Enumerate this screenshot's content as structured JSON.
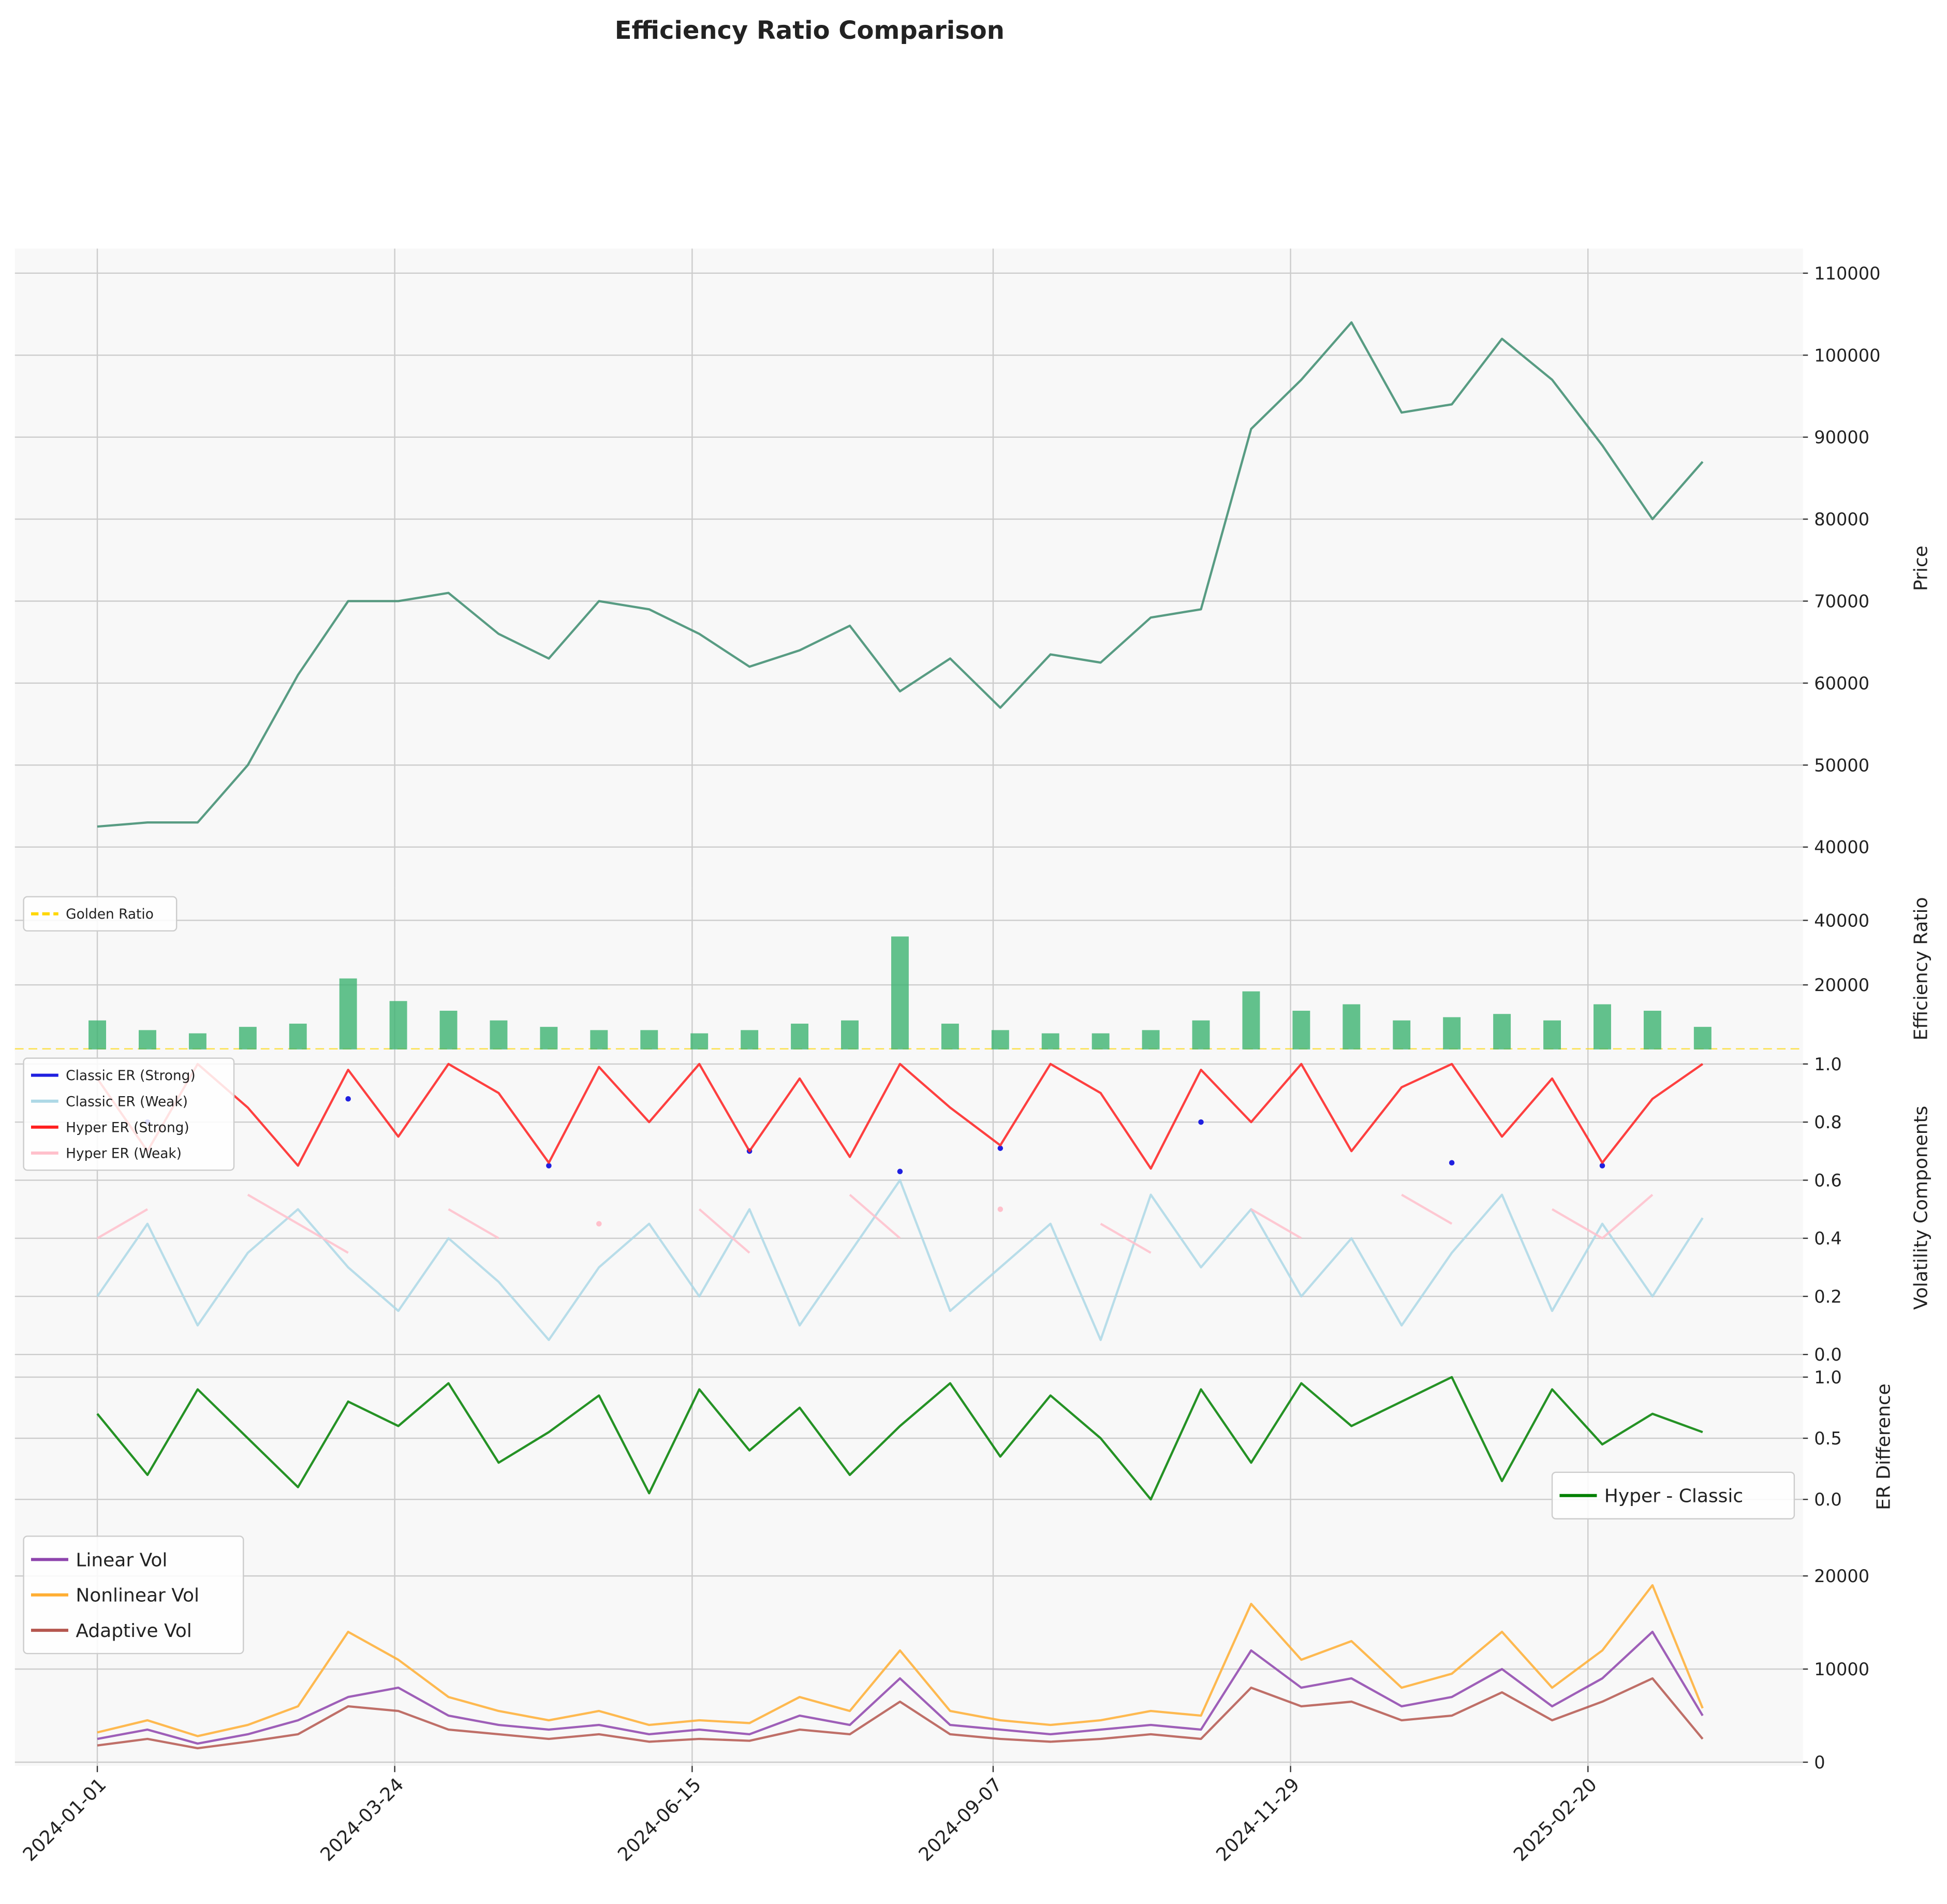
{
  "title": "Efficiency Ratio Comparison",
  "chart_data": [
    {
      "type": "line",
      "ylabel": "Price",
      "x": [
        "2024-01-01",
        "2024-01-15",
        "2024-01-29",
        "2024-02-12",
        "2024-02-26",
        "2024-03-11",
        "2024-03-25",
        "2024-04-08",
        "2024-04-22",
        "2024-05-06",
        "2024-05-20",
        "2024-06-03",
        "2024-06-17",
        "2024-07-01",
        "2024-07-15",
        "2024-07-29",
        "2024-08-12",
        "2024-08-26",
        "2024-09-09",
        "2024-09-23",
        "2024-10-07",
        "2024-10-21",
        "2024-11-04",
        "2024-11-18",
        "2024-12-02",
        "2024-12-16",
        "2024-12-30",
        "2025-01-13",
        "2025-01-27",
        "2025-02-10",
        "2025-02-24",
        "2025-03-10",
        "2025-03-24"
      ],
      "series": [
        {
          "color": "#3c8c6e",
          "values": [
            42500,
            43000,
            43000,
            50000,
            61000,
            70000,
            70000,
            71000,
            66000,
            63000,
            70000,
            69000,
            66000,
            62000,
            64000,
            67000,
            59000,
            63000,
            57000,
            63500,
            62500,
            68000,
            69000,
            91000,
            97000,
            104000,
            93000,
            94000,
            102000,
            97000,
            89000,
            80000,
            87000
          ]
        }
      ],
      "xlim": [
        "2023-12-09",
        "2025-04-21"
      ],
      "ylim": [
        35000,
        113000
      ],
      "yticks": [
        40000,
        50000,
        60000,
        70000,
        80000,
        90000,
        100000,
        110000
      ],
      "grid": true
    },
    {
      "type": "bar",
      "ylabel": "Efficiency Ratio",
      "x": [
        "2024-01-01",
        "2024-01-15",
        "2024-01-29",
        "2024-02-12",
        "2024-02-26",
        "2024-03-11",
        "2024-03-25",
        "2024-04-08",
        "2024-04-22",
        "2024-05-06",
        "2024-05-20",
        "2024-06-03",
        "2024-06-17",
        "2024-07-01",
        "2024-07-15",
        "2024-07-29",
        "2024-08-12",
        "2024-08-26",
        "2024-09-09",
        "2024-09-23",
        "2024-10-07",
        "2024-10-21",
        "2024-11-04",
        "2024-11-18",
        "2024-12-02",
        "2024-12-16",
        "2024-12-30",
        "2025-01-13",
        "2025-01-27",
        "2025-02-10",
        "2025-02-24",
        "2025-03-10",
        "2025-03-24"
      ],
      "series": [
        {
          "color": "#3cb371",
          "values": [
            9000,
            6000,
            5000,
            7000,
            8000,
            22000,
            15000,
            12000,
            9000,
            7000,
            6000,
            6000,
            5000,
            6000,
            8000,
            9000,
            35000,
            8000,
            6000,
            5000,
            5000,
            6000,
            9000,
            18000,
            12000,
            14000,
            9000,
            10000,
            11000,
            9000,
            14000,
            12000,
            7000
          ]
        }
      ],
      "reference_lines": [
        {
          "name": "Golden Ratio",
          "value": 0.618,
          "color": "#ffd700"
        }
      ],
      "xlim": [
        "2023-12-09",
        "2025-04-21"
      ],
      "ylim": [
        0,
        50000
      ],
      "yticks": [
        20000,
        40000
      ],
      "grid": true,
      "legend": "upper left"
    },
    {
      "type": "line",
      "ylabel": "Volatility Components",
      "x": [
        "2024-01-01",
        "2024-01-15",
        "2024-01-29",
        "2024-02-12",
        "2024-02-26",
        "2024-03-11",
        "2024-03-25",
        "2024-04-08",
        "2024-04-22",
        "2024-05-06",
        "2024-05-20",
        "2024-06-03",
        "2024-06-17",
        "2024-07-01",
        "2024-07-15",
        "2024-07-29",
        "2024-08-12",
        "2024-08-26",
        "2024-09-09",
        "2024-09-23",
        "2024-10-07",
        "2024-10-21",
        "2024-11-04",
        "2024-11-18",
        "2024-12-02",
        "2024-12-16",
        "2024-12-30",
        "2025-01-13",
        "2025-01-27",
        "2025-02-10",
        "2025-02-24",
        "2025-03-10",
        "2025-03-24"
      ],
      "series": [
        {
          "name": "Classic ER (Strong)",
          "color": "#2020e0",
          "values": [
            null,
            0.8,
            null,
            null,
            null,
            0.88,
            null,
            null,
            null,
            0.65,
            null,
            null,
            null,
            0.7,
            null,
            null,
            0.63,
            null,
            0.71,
            null,
            null,
            null,
            0.8,
            null,
            null,
            null,
            null,
            0.66,
            null,
            null,
            0.65,
            null,
            null
          ]
        },
        {
          "name": "Classic ER (Weak)",
          "color": "#add8e6",
          "values": [
            0.2,
            0.45,
            0.1,
            0.35,
            0.5,
            0.3,
            0.15,
            0.4,
            0.25,
            0.05,
            0.3,
            0.45,
            0.2,
            0.5,
            0.1,
            0.35,
            0.6,
            0.15,
            0.3,
            0.45,
            0.05,
            0.55,
            0.3,
            0.5,
            0.2,
            0.4,
            0.1,
            0.35,
            0.55,
            0.15,
            0.45,
            0.2,
            0.47
          ]
        },
        {
          "name": "Hyper ER (Strong)",
          "color": "#ff2020",
          "values": [
            0.95,
            0.7,
            1.0,
            0.85,
            0.65,
            0.98,
            0.75,
            1.0,
            0.9,
            0.66,
            0.99,
            0.8,
            1.0,
            0.7,
            0.95,
            0.68,
            1.0,
            0.85,
            0.72,
            1.0,
            0.9,
            0.64,
            0.98,
            0.8,
            1.0,
            0.7,
            0.92,
            1.0,
            0.75,
            0.95,
            0.66,
            0.88,
            1.0
          ]
        },
        {
          "name": "Hyper ER (Weak)",
          "color": "#ffc0cb",
          "values": [
            0.4,
            0.5,
            null,
            0.55,
            0.45,
            0.35,
            null,
            0.5,
            0.4,
            null,
            0.45,
            null,
            0.5,
            0.35,
            null,
            0.55,
            0.4,
            null,
            0.5,
            null,
            0.45,
            0.35,
            null,
            0.5,
            0.4,
            null,
            0.55,
            0.45,
            null,
            0.5,
            0.4,
            0.55,
            null
          ]
        }
      ],
      "xlim": [
        "2023-12-09",
        "2025-04-21"
      ],
      "ylim": [
        -0.04,
        1.05
      ],
      "yticks": [
        {
          "value": 0,
          "label": "0.0"
        },
        0.2,
        0.4,
        0.6,
        0.8,
        {
          "value": 1,
          "label": "1.0"
        }
      ],
      "grid": true,
      "legend": "upper left"
    },
    {
      "type": "line",
      "ylabel": "ER Difference",
      "x": [
        "2024-01-01",
        "2024-01-15",
        "2024-01-29",
        "2024-02-12",
        "2024-02-26",
        "2024-03-11",
        "2024-03-25",
        "2024-04-08",
        "2024-04-22",
        "2024-05-06",
        "2024-05-20",
        "2024-06-03",
        "2024-06-17",
        "2024-07-01",
        "2024-07-15",
        "2024-07-29",
        "2024-08-12",
        "2024-08-26",
        "2024-09-09",
        "2024-09-23",
        "2024-10-07",
        "2024-10-21",
        "2024-11-04",
        "2024-11-18",
        "2024-12-02",
        "2024-12-16",
        "2024-12-30",
        "2025-01-13",
        "2025-01-27",
        "2025-02-10",
        "2025-02-24",
        "2025-03-10",
        "2025-03-24"
      ],
      "series": [
        {
          "name": "Hyper - Classic",
          "color": "#008000",
          "values": [
            0.7,
            0.2,
            0.9,
            0.5,
            0.1,
            0.8,
            0.6,
            0.95,
            0.3,
            0.55,
            0.85,
            0.05,
            0.9,
            0.4,
            0.75,
            0.2,
            0.6,
            0.95,
            0.35,
            0.85,
            0.5,
            0.0,
            0.9,
            0.3,
            0.95,
            0.6,
            0.8,
            1.0,
            0.15,
            0.9,
            0.45,
            0.7,
            0.55
          ]
        }
      ],
      "xlim": [
        "2023-12-09",
        "2025-04-21"
      ],
      "ylim": [
        -0.23,
        1.09
      ],
      "yticks": [
        {
          "value": 0,
          "label": "0.0"
        },
        0.5,
        {
          "value": 1,
          "label": "1.0"
        }
      ],
      "grid": true,
      "legend": "lower right"
    },
    {
      "type": "line",
      "x": [
        "2024-01-01",
        "2024-01-15",
        "2024-01-29",
        "2024-02-12",
        "2024-02-26",
        "2024-03-11",
        "2024-03-25",
        "2024-04-08",
        "2024-04-22",
        "2024-05-06",
        "2024-05-20",
        "2024-06-03",
        "2024-06-17",
        "2024-07-01",
        "2024-07-15",
        "2024-07-29",
        "2024-08-12",
        "2024-08-26",
        "2024-09-09",
        "2024-09-23",
        "2024-10-07",
        "2024-10-21",
        "2024-11-04",
        "2024-11-18",
        "2024-12-02",
        "2024-12-16",
        "2024-12-30",
        "2025-01-13",
        "2025-01-27",
        "2025-02-10",
        "2025-02-24",
        "2025-03-10",
        "2025-03-24"
      ],
      "series": [
        {
          "name": "Linear Vol",
          "color": "#8e44ad",
          "values": [
            2500,
            3500,
            2000,
            3000,
            4500,
            7000,
            8000,
            5000,
            4000,
            3500,
            4000,
            3000,
            3500,
            3000,
            5000,
            4000,
            9000,
            4000,
            3500,
            3000,
            3500,
            4000,
            3500,
            12000,
            8000,
            9000,
            6000,
            7000,
            10000,
            6000,
            9000,
            14000,
            5000
          ]
        },
        {
          "name": "Nonlinear Vol",
          "color": "#ffae33",
          "values": [
            3200,
            4500,
            2800,
            4000,
            6000,
            14000,
            11000,
            7000,
            5500,
            4500,
            5500,
            4000,
            4500,
            4200,
            7000,
            5500,
            12000,
            5500,
            4500,
            4000,
            4500,
            5500,
            5000,
            17000,
            11000,
            13000,
            8000,
            9500,
            14000,
            8000,
            12000,
            19000,
            5800
          ]
        },
        {
          "name": "Adaptive Vol",
          "color": "#b5574f",
          "values": [
            1800,
            2500,
            1500,
            2200,
            3000,
            6000,
            5500,
            3500,
            3000,
            2500,
            3000,
            2200,
            2500,
            2300,
            3500,
            3000,
            6500,
            3000,
            2500,
            2200,
            2500,
            3000,
            2500,
            8000,
            6000,
            6500,
            4500,
            5000,
            7500,
            4500,
            6500,
            9000,
            2500
          ]
        }
      ],
      "xlim": [
        "2023-12-09",
        "2025-04-21"
      ],
      "ylim": [
        -400,
        25200
      ],
      "yticks": [
        0,
        10000,
        20000
      ],
      "xticks": [
        "2024-01-01",
        "2024-03-24",
        "2024-06-15",
        "2024-09-07",
        "2024-11-29",
        "2025-02-20"
      ],
      "grid": true,
      "legend": "upper left"
    }
  ]
}
